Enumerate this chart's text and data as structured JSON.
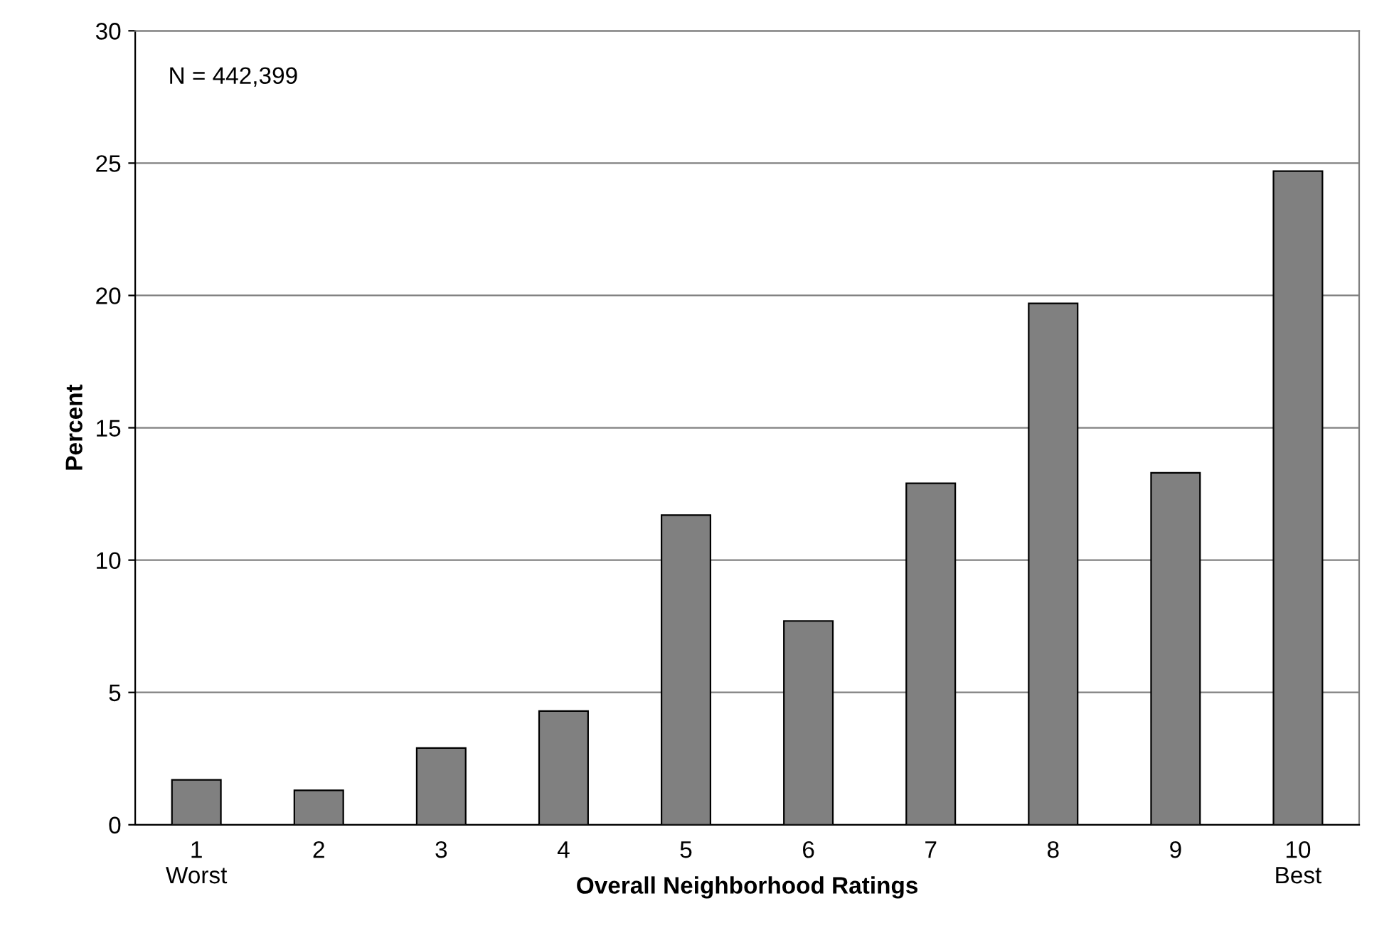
{
  "chart_data": {
    "type": "bar",
    "xlabel": "Overall Neighborhood Ratings",
    "ylabel": "Percent",
    "categories": [
      "1\nWorst",
      "2",
      "3",
      "4",
      "5",
      "6",
      "7",
      "8",
      "9",
      "10\nBest"
    ],
    "values": [
      1.7,
      1.3,
      2.9,
      4.3,
      11.7,
      7.7,
      12.9,
      19.7,
      13.3,
      24.7
    ],
    "color": "#808080",
    "ylim": [
      0,
      30
    ],
    "yticks": [
      0,
      5,
      10,
      15,
      20,
      25,
      30
    ],
    "grid": "y",
    "annotations": [
      "N = 442,399"
    ]
  }
}
